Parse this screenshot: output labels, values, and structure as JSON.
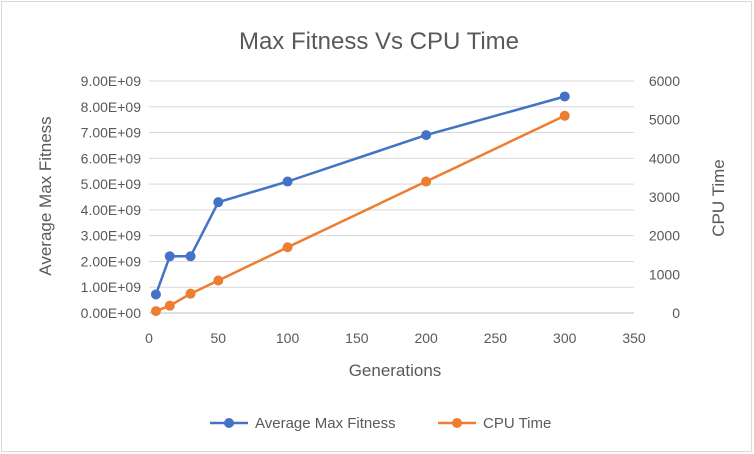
{
  "chart_data": {
    "type": "line",
    "title": "Max Fitness Vs CPU Time",
    "xlabel": "Generations",
    "ylabel": "Average Max Fitness",
    "y2label": "CPU Time",
    "xlim": [
      0,
      350
    ],
    "x_ticks": [
      "0",
      "50",
      "100",
      "150",
      "200",
      "250",
      "300",
      "350"
    ],
    "ylim": [
      0,
      9000000000
    ],
    "y_ticks": [
      "0.00E+00",
      "1.00E+09",
      "2.00E+09",
      "3.00E+09",
      "4.00E+09",
      "5.00E+09",
      "6.00E+09",
      "7.00E+09",
      "8.00E+09",
      "9.00E+09"
    ],
    "y2lim": [
      0,
      6000
    ],
    "y2_ticks": [
      "0",
      "1000",
      "2000",
      "3000",
      "4000",
      "5000",
      "6000"
    ],
    "grid": true,
    "legend_position": "bottom",
    "series": [
      {
        "name": "Average Max Fitness",
        "axis": "left",
        "color": "#4472c4",
        "x": [
          5,
          15,
          30,
          50,
          100,
          200,
          300
        ],
        "values": [
          720000000,
          2200000000,
          2200000000,
          4300000000,
          5100000000,
          6900000000,
          8400000000
        ]
      },
      {
        "name": "CPU Time",
        "axis": "right",
        "color": "#ed7d31",
        "x": [
          5,
          15,
          30,
          50,
          100,
          200,
          300
        ],
        "values": [
          50,
          190,
          500,
          840,
          1700,
          3400,
          5100
        ]
      }
    ]
  }
}
